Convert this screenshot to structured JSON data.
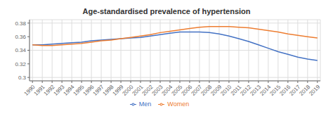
{
  "chart_data": {
    "type": "line",
    "title": "Age-standardised prevalence of hypertension",
    "x": [
      1990,
      1991,
      1992,
      1993,
      1994,
      1995,
      1996,
      1997,
      1998,
      1999,
      2000,
      2001,
      2002,
      2003,
      2004,
      2005,
      2006,
      2007,
      2008,
      2009,
      2010,
      2011,
      2012,
      2013,
      2014,
      2015,
      2016,
      2017,
      2018,
      2019
    ],
    "series": [
      {
        "name": "Men",
        "color": "#4472c4",
        "values": [
          0.348,
          0.348,
          0.349,
          0.35,
          0.351,
          0.352,
          0.354,
          0.355,
          0.356,
          0.357,
          0.358,
          0.359,
          0.361,
          0.363,
          0.365,
          0.367,
          0.367,
          0.367,
          0.366,
          0.364,
          0.361,
          0.357,
          0.353,
          0.348,
          0.343,
          0.338,
          0.334,
          0.33,
          0.327,
          0.325
        ]
      },
      {
        "name": "Women",
        "color": "#ed7d31",
        "values": [
          0.348,
          0.347,
          0.347,
          0.348,
          0.349,
          0.35,
          0.352,
          0.354,
          0.355,
          0.357,
          0.359,
          0.361,
          0.363,
          0.366,
          0.368,
          0.37,
          0.372,
          0.374,
          0.375,
          0.375,
          0.375,
          0.374,
          0.373,
          0.371,
          0.369,
          0.367,
          0.364,
          0.362,
          0.36,
          0.358
        ]
      }
    ],
    "xlim": [
      1989.7,
      2019.3
    ],
    "xticks": [
      1990,
      1991,
      1992,
      1993,
      1994,
      1995,
      1996,
      1997,
      1998,
      1999,
      2000,
      2001,
      2002,
      2003,
      2004,
      2005,
      2006,
      2007,
      2008,
      2009,
      2010,
      2011,
      2012,
      2013,
      2014,
      2015,
      2016,
      2017,
      2018,
      2019
    ],
    "ylim": [
      0.295,
      0.385
    ],
    "yticks": [
      0.3,
      0.32,
      0.34,
      0.36,
      0.38
    ],
    "grid": true,
    "legend": "bottom"
  }
}
